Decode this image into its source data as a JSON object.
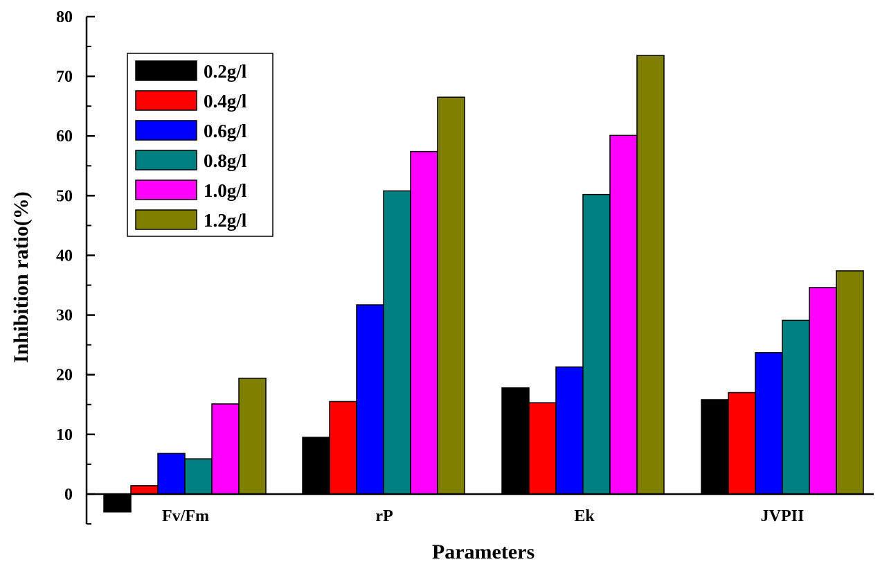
{
  "chart_data": {
    "type": "bar",
    "title": "",
    "xlabel": "Parameters",
    "ylabel": "Inhibition ratio(%)",
    "categories": [
      "Fv/Fm",
      "rP",
      "Ek",
      "JVPII"
    ],
    "ylim": [
      -5,
      80
    ],
    "yticks": [
      0,
      10,
      20,
      30,
      40,
      50,
      60,
      70,
      80
    ],
    "grid": false,
    "legend_position": "top-left",
    "series": [
      {
        "name": "0.2g/l",
        "color": "#000000",
        "values": [
          -3,
          9.5,
          17.8,
          15.8
        ]
      },
      {
        "name": "0.4g/l",
        "color": "#ff0000",
        "values": [
          1.4,
          15.5,
          15.3,
          17.0
        ]
      },
      {
        "name": "0.6g/l",
        "color": "#0000ff",
        "values": [
          6.8,
          31.7,
          21.3,
          23.7
        ]
      },
      {
        "name": "0.8g/l",
        "color": "#008080",
        "values": [
          5.9,
          50.8,
          50.2,
          29.1
        ]
      },
      {
        "name": "1.0g/l",
        "color": "#ff00ff",
        "values": [
          15.1,
          57.4,
          60.1,
          34.6
        ]
      },
      {
        "name": "1.2g/l",
        "color": "#808000",
        "values": [
          19.4,
          66.5,
          73.5,
          37.4
        ]
      }
    ]
  }
}
